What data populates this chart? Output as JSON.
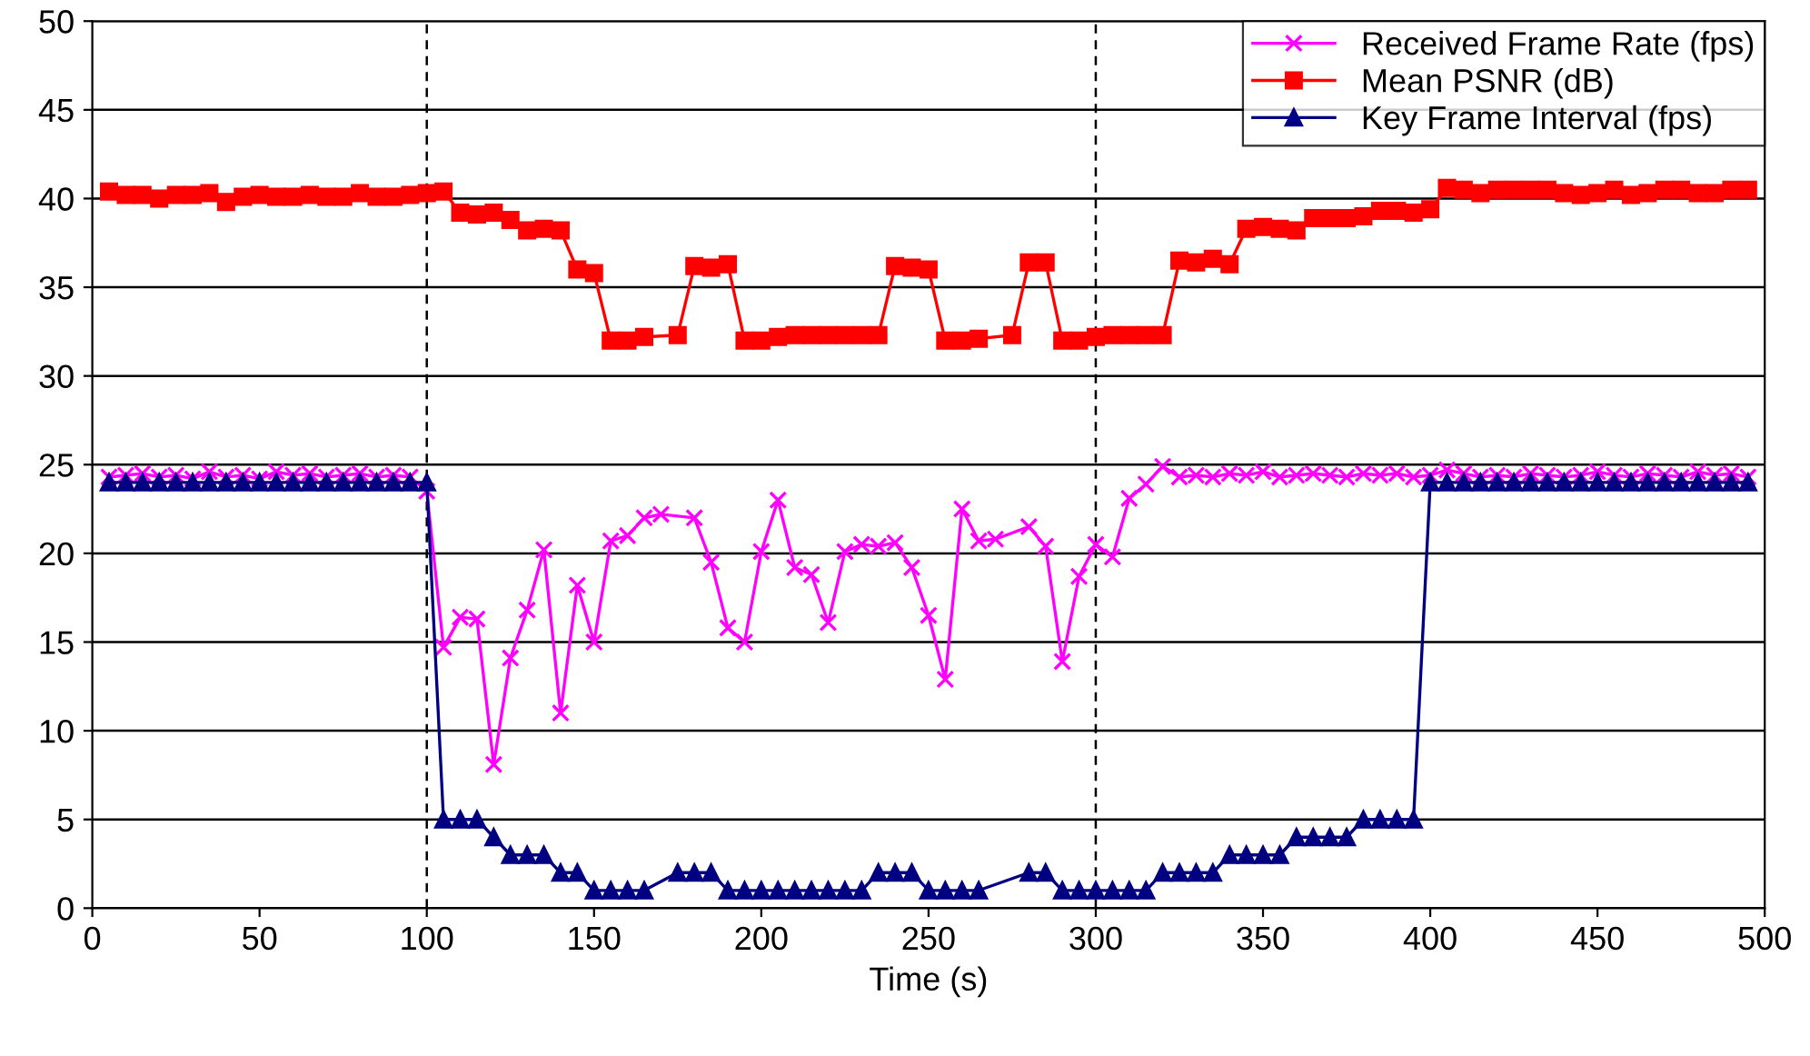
{
  "chart_data": {
    "type": "line",
    "xlabel": "Time (s)",
    "xlim": [
      0,
      500
    ],
    "ylim": [
      0,
      50
    ],
    "xticks": [
      0,
      50,
      100,
      150,
      200,
      250,
      300,
      350,
      400,
      450,
      500
    ],
    "yticks": [
      0,
      5,
      10,
      15,
      20,
      25,
      30,
      35,
      40,
      45,
      50
    ],
    "grid": "y",
    "legend": "top right",
    "ref_lines": [
      {
        "axis": "x",
        "value": 100,
        "color": "#000000",
        "line_style": "dashed"
      },
      {
        "axis": "x",
        "value": 300,
        "color": "#000000",
        "line_style": "dashed"
      }
    ],
    "series": [
      {
        "name": "Received Frame Rate (fps)",
        "color": "#ff00ff",
        "marker": "cross",
        "x": [
          5,
          10,
          15,
          20,
          25,
          30,
          35,
          40,
          45,
          50,
          55,
          60,
          65,
          70,
          75,
          80,
          85,
          90,
          95,
          100,
          105,
          110,
          115,
          120,
          125,
          130,
          135,
          140,
          145,
          150,
          155,
          160,
          165,
          170,
          180,
          185,
          190,
          195,
          200,
          205,
          210,
          215,
          220,
          225,
          230,
          235,
          240,
          245,
          250,
          255,
          260,
          265,
          270,
          280,
          285,
          290,
          295,
          300,
          305,
          310,
          315,
          320,
          325,
          330,
          335,
          340,
          345,
          350,
          355,
          360,
          365,
          370,
          375,
          380,
          385,
          390,
          395,
          400,
          405,
          410,
          415,
          420,
          425,
          430,
          435,
          440,
          445,
          450,
          455,
          460,
          465,
          470,
          475,
          480,
          485,
          490,
          495
        ],
        "values": [
          24.3,
          24.4,
          24.5,
          24.3,
          24.4,
          24.2,
          24.6,
          24.3,
          24.4,
          24.2,
          24.6,
          24.4,
          24.5,
          24.3,
          24.4,
          24.5,
          24.3,
          24.4,
          24.3,
          23.5,
          14.7,
          16.4,
          16.3,
          8.1,
          14.1,
          16.8,
          20.2,
          11,
          18.2,
          15,
          20.7,
          21,
          22,
          22.2,
          22,
          19.5,
          15.8,
          15,
          20.1,
          23,
          19.2,
          18.8,
          16.1,
          20.1,
          20.5,
          20.4,
          20.6,
          19.2,
          16.5,
          12.9,
          22.5,
          20.7,
          20.8,
          21.5,
          20.4,
          13.9,
          18.7,
          20.5,
          19.8,
          23.1,
          23.9,
          24.9,
          24.3,
          24.4,
          24.3,
          24.5,
          24.4,
          24.6,
          24.3,
          24.4,
          24.5,
          24.4,
          24.3,
          24.5,
          24.4,
          24.5,
          24.3,
          24.4,
          24.7,
          24.5,
          24.3,
          24.4,
          24.3,
          24.5,
          24.4,
          24.3,
          24.4,
          24.6,
          24.4,
          24.3,
          24.5,
          24.4,
          24.3,
          24.6,
          24.4,
          24.5,
          24.3
        ]
      },
      {
        "name": "Mean PSNR (dB)",
        "color": "#ff0000",
        "marker": "square",
        "x": [
          5,
          10,
          15,
          20,
          25,
          30,
          35,
          40,
          45,
          50,
          55,
          60,
          65,
          70,
          75,
          80,
          85,
          90,
          95,
          100,
          105,
          110,
          115,
          120,
          125,
          130,
          135,
          140,
          145,
          150,
          155,
          160,
          165,
          175,
          180,
          185,
          190,
          195,
          200,
          205,
          210,
          215,
          220,
          225,
          230,
          235,
          240,
          245,
          250,
          255,
          260,
          265,
          275,
          280,
          285,
          290,
          295,
          300,
          305,
          310,
          315,
          320,
          325,
          330,
          335,
          340,
          345,
          350,
          355,
          360,
          365,
          370,
          375,
          380,
          385,
          390,
          395,
          400,
          405,
          410,
          415,
          420,
          425,
          430,
          435,
          440,
          445,
          450,
          455,
          460,
          465,
          470,
          475,
          480,
          485,
          490,
          495
        ],
        "values": [
          40.4,
          40.2,
          40.2,
          40,
          40.2,
          40.2,
          40.3,
          39.8,
          40.1,
          40.2,
          40.1,
          40.1,
          40.2,
          40.1,
          40.1,
          40.3,
          40.1,
          40.1,
          40.2,
          40.3,
          40.4,
          39.2,
          39.1,
          39.2,
          38.8,
          38.2,
          38.3,
          38.2,
          36,
          35.8,
          32,
          32,
          32.2,
          32.3,
          36.2,
          36.1,
          36.3,
          32,
          32,
          32.2,
          32.3,
          32.3,
          32.3,
          32.3,
          32.3,
          32.3,
          36.2,
          36.1,
          36,
          32,
          32,
          32.1,
          32.3,
          36.4,
          36.4,
          32,
          32,
          32.2,
          32.3,
          32.3,
          32.3,
          32.3,
          36.5,
          36.4,
          36.6,
          36.3,
          38.3,
          38.4,
          38.3,
          38.2,
          38.9,
          38.9,
          38.9,
          39,
          39.3,
          39.3,
          39.2,
          39.4,
          40.6,
          40.5,
          40.3,
          40.5,
          40.5,
          40.5,
          40.5,
          40.3,
          40.2,
          40.3,
          40.5,
          40.2,
          40.3,
          40.5,
          40.5,
          40.3,
          40.3,
          40.5,
          40.5
        ]
      },
      {
        "name": "Key Frame Interval (fps)",
        "color": "#000080",
        "marker": "triangle",
        "x": [
          5,
          10,
          15,
          20,
          25,
          30,
          35,
          40,
          45,
          50,
          55,
          60,
          65,
          70,
          75,
          80,
          85,
          90,
          95,
          100,
          105,
          110,
          115,
          120,
          125,
          130,
          135,
          140,
          145,
          150,
          155,
          160,
          165,
          175,
          180,
          185,
          190,
          195,
          200,
          205,
          210,
          215,
          220,
          225,
          230,
          235,
          240,
          245,
          250,
          255,
          260,
          265,
          280,
          285,
          290,
          295,
          300,
          305,
          310,
          315,
          320,
          325,
          330,
          335,
          340,
          345,
          350,
          355,
          360,
          365,
          370,
          375,
          380,
          385,
          390,
          395,
          400,
          405,
          410,
          415,
          420,
          425,
          430,
          435,
          440,
          445,
          450,
          455,
          460,
          465,
          470,
          475,
          480,
          485,
          490,
          495
        ],
        "values": [
          24,
          24,
          24,
          24,
          24,
          24,
          24,
          24,
          24,
          24,
          24,
          24,
          24,
          24,
          24,
          24,
          24,
          24,
          24,
          24,
          5,
          5,
          5,
          4,
          3,
          3,
          3,
          2,
          2,
          1,
          1,
          1,
          1,
          2,
          2,
          2,
          1,
          1,
          1,
          1,
          1,
          1,
          1,
          1,
          1,
          2,
          2,
          2,
          1,
          1,
          1,
          1,
          2,
          2,
          1,
          1,
          1,
          1,
          1,
          1,
          2,
          2,
          2,
          2,
          3,
          3,
          3,
          3,
          4,
          4,
          4,
          4,
          5,
          5,
          5,
          5,
          24,
          24,
          24,
          24,
          24,
          24,
          24,
          24,
          24,
          24,
          24,
          24,
          24,
          24,
          24,
          24,
          24,
          24,
          24,
          24
        ]
      }
    ]
  }
}
